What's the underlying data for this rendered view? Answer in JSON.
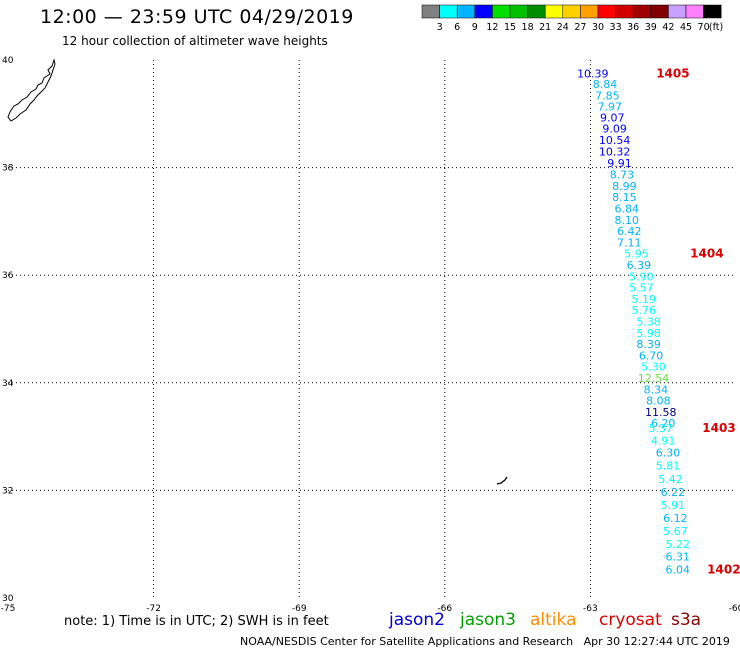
{
  "header": {
    "title": "12:00 — 23:59 UTC 04/29/2019",
    "subtitle": "12 hour collection of altimeter wave heights"
  },
  "colorbar": {
    "labels": [
      "3",
      "6",
      "9",
      "12",
      "15",
      "18",
      "21",
      "24",
      "27",
      "30",
      "33",
      "36",
      "39",
      "42",
      "45",
      "70"
    ],
    "unit": "(ft)",
    "colors": [
      "#808080",
      "#00ffff",
      "#00b4ff",
      "#0000ff",
      "#00e000",
      "#00c000",
      "#008c00",
      "#ffff00",
      "#ffd000",
      "#ffa000",
      "#ff0000",
      "#d00000",
      "#a00000",
      "#800000",
      "#c8a0ff",
      "#ff80ff",
      "#000000"
    ]
  },
  "chart_data": {
    "type": "scatter",
    "xlim": [
      -75,
      -60
    ],
    "ylim": [
      30,
      40
    ],
    "x_ticks": [
      "-75",
      "-72",
      "-69",
      "-66",
      "-63",
      "-60"
    ],
    "y_ticks": [
      "30",
      "32",
      "34",
      "36",
      "38",
      "40"
    ],
    "grid": true,
    "points": [
      {
        "lon": -62.95,
        "lat": 39.75,
        "v": "10.39",
        "color": "#0000ff"
      },
      {
        "lon": -62.7,
        "lat": 39.55,
        "v": "8.84",
        "color": "#00b4ff"
      },
      {
        "lon": -62.65,
        "lat": 39.34,
        "v": "7.85",
        "color": "#00b4ff"
      },
      {
        "lon": -62.6,
        "lat": 39.14,
        "v": "7.97",
        "color": "#00b4ff"
      },
      {
        "lon": -62.55,
        "lat": 38.93,
        "v": "9.07",
        "color": "#0000ff"
      },
      {
        "lon": -62.5,
        "lat": 38.73,
        "v": "9.09",
        "color": "#0000ff"
      },
      {
        "lon": -62.5,
        "lat": 38.51,
        "v": "10.54",
        "color": "#0000ff"
      },
      {
        "lon": -62.5,
        "lat": 38.3,
        "v": "10.32",
        "color": "#0000ff"
      },
      {
        "lon": -62.4,
        "lat": 38.09,
        "v": "9.91",
        "color": "#0000ff"
      },
      {
        "lon": -62.35,
        "lat": 37.87,
        "v": "8.73",
        "color": "#00b4ff"
      },
      {
        "lon": -62.3,
        "lat": 37.66,
        "v": "8.99",
        "color": "#00b4ff"
      },
      {
        "lon": -62.3,
        "lat": 37.45,
        "v": "8.15",
        "color": "#00b4ff"
      },
      {
        "lon": -62.25,
        "lat": 37.24,
        "v": "6.84",
        "color": "#00b4ff"
      },
      {
        "lon": -62.25,
        "lat": 37.03,
        "v": "8.10",
        "color": "#00b4ff"
      },
      {
        "lon": -62.2,
        "lat": 36.82,
        "v": "6.42",
        "color": "#00b4ff"
      },
      {
        "lon": -62.2,
        "lat": 36.61,
        "v": "7.11",
        "color": "#00b4ff"
      },
      {
        "lon": -62.05,
        "lat": 36.4,
        "v": "5.95",
        "color": "#00ffff"
      },
      {
        "lon": -62.0,
        "lat": 36.19,
        "v": "6.39",
        "color": "#00b4ff"
      },
      {
        "lon": -61.95,
        "lat": 35.98,
        "v": "5.90",
        "color": "#00ffff"
      },
      {
        "lon": -61.95,
        "lat": 35.77,
        "v": "5.57",
        "color": "#00ffff"
      },
      {
        "lon": -61.9,
        "lat": 35.56,
        "v": "5.19",
        "color": "#00ffff"
      },
      {
        "lon": -61.9,
        "lat": 35.35,
        "v": "5.76",
        "color": "#00ffff"
      },
      {
        "lon": -61.8,
        "lat": 35.14,
        "v": "5.38",
        "color": "#00ffff"
      },
      {
        "lon": -61.8,
        "lat": 34.93,
        "v": "5.98",
        "color": "#00ffff"
      },
      {
        "lon": -61.8,
        "lat": 34.72,
        "v": "8.39",
        "color": "#00b4ff"
      },
      {
        "lon": -61.75,
        "lat": 34.51,
        "v": "6.70",
        "color": "#00b4ff"
      },
      {
        "lon": -61.7,
        "lat": 34.3,
        "v": "5.30",
        "color": "#00ffff"
      },
      {
        "lon": -61.7,
        "lat": 34.09,
        "v": "12.54",
        "color": "#66dd44"
      },
      {
        "lon": -61.65,
        "lat": 33.88,
        "v": "8.34",
        "color": "#00b4ff"
      },
      {
        "lon": -61.6,
        "lat": 33.67,
        "v": "8.08",
        "color": "#00b4ff"
      },
      {
        "lon": -61.55,
        "lat": 33.46,
        "v": "11.58",
        "color": "#000080"
      },
      {
        "lon": -61.5,
        "lat": 33.25,
        "v": "6.20",
        "color": "#00b4ff"
      },
      {
        "lon": -61.55,
        "lat": 33.16,
        "v": "5.37",
        "color": "#00ffff"
      },
      {
        "lon": -61.5,
        "lat": 32.93,
        "v": "4.91",
        "color": "#00ffff"
      },
      {
        "lon": -61.4,
        "lat": 32.7,
        "v": "6.30",
        "color": "#00b4ff"
      },
      {
        "lon": -61.4,
        "lat": 32.46,
        "v": "5.81",
        "color": "#00ffff"
      },
      {
        "lon": -61.35,
        "lat": 32.21,
        "v": "5.42",
        "color": "#00ffff"
      },
      {
        "lon": -61.3,
        "lat": 31.97,
        "v": "6.22",
        "color": "#00b4ff"
      },
      {
        "lon": -61.3,
        "lat": 31.73,
        "v": "5.91",
        "color": "#00ffff"
      },
      {
        "lon": -61.25,
        "lat": 31.49,
        "v": "6.12",
        "color": "#00b4ff"
      },
      {
        "lon": -61.25,
        "lat": 31.25,
        "v": "5.67",
        "color": "#00ffff"
      },
      {
        "lon": -61.2,
        "lat": 31.0,
        "v": "5.22",
        "color": "#00ffff"
      },
      {
        "lon": -61.2,
        "lat": 30.77,
        "v": "6.31",
        "color": "#00b4ff"
      },
      {
        "lon": -61.2,
        "lat": 30.53,
        "v": "6.04",
        "color": "#00b4ff"
      }
    ],
    "pass_labels": [
      {
        "text": "1405",
        "lon": -61.3,
        "lat": 39.75
      },
      {
        "text": "1404",
        "lon": -60.6,
        "lat": 36.4
      },
      {
        "text": "1403",
        "lon": -60.35,
        "lat": 33.16
      },
      {
        "text": "1402",
        "lon": -60.25,
        "lat": 30.53
      }
    ]
  },
  "footer": {
    "note": "note: 1) Time is in UTC; 2) SWH is in feet",
    "satellites": [
      {
        "name": "jason2",
        "color": "#0000dd"
      },
      {
        "name": "jason3",
        "color": "#00a000"
      },
      {
        "name": "altika",
        "color": "#ff8c00"
      },
      {
        "name": "cryosat",
        "color": "#dd0000"
      },
      {
        "name": "s3a",
        "color": "#8b0000"
      }
    ],
    "credit": "NOAA/NESDIS Center for Satellite Applications and Research   Apr 30 12:27:44 UTC 2019"
  }
}
